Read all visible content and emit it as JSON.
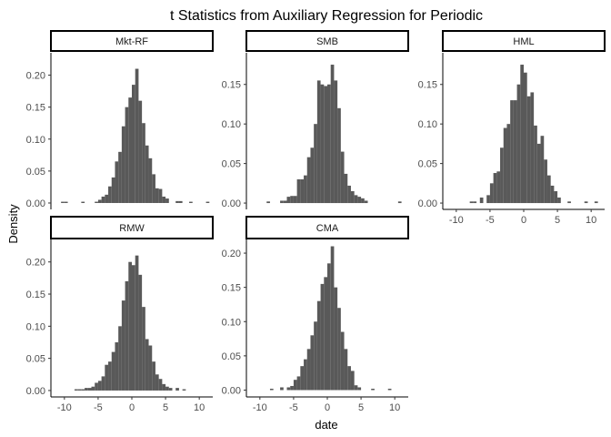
{
  "chart_data": {
    "type": "bar",
    "title": "t Statistics from Auxiliary Regression for Periodic",
    "xlabel": "date",
    "ylabel": "Density",
    "bar_color": "#595959",
    "x_ticks": [
      -10,
      -5,
      0,
      5,
      10
    ],
    "x_tick_labels": [
      "-10",
      "-5",
      "0",
      "5",
      "10"
    ],
    "grid": false,
    "panels": [
      {
        "name": "Mkt-RF",
        "xlim": [
          -12,
          12
        ],
        "ylim": [
          -0.01,
          0.235
        ],
        "y_ticks": [
          0,
          0.05,
          0.1,
          0.15,
          0.2
        ],
        "y_tick_labels": [
          "0.00",
          "0.05",
          "0.10",
          "0.15",
          "0.20"
        ],
        "bins": [
          {
            "x": -10.5,
            "y": 0.002
          },
          {
            "x": -10.0,
            "y": 0.002
          },
          {
            "x": -7.5,
            "y": 0.002
          },
          {
            "x": -5.5,
            "y": 0.002
          },
          {
            "x": -5.0,
            "y": 0.005
          },
          {
            "x": -4.5,
            "y": 0.01
          },
          {
            "x": -4.0,
            "y": 0.013
          },
          {
            "x": -3.5,
            "y": 0.026
          },
          {
            "x": -3.0,
            "y": 0.04
          },
          {
            "x": -2.5,
            "y": 0.065
          },
          {
            "x": -2.0,
            "y": 0.08
          },
          {
            "x": -1.5,
            "y": 0.12
          },
          {
            "x": -1.0,
            "y": 0.15
          },
          {
            "x": -0.5,
            "y": 0.165
          },
          {
            "x": 0.0,
            "y": 0.185
          },
          {
            "x": 0.5,
            "y": 0.21
          },
          {
            "x": 1.0,
            "y": 0.16
          },
          {
            "x": 1.5,
            "y": 0.125
          },
          {
            "x": 2.0,
            "y": 0.09
          },
          {
            "x": 2.5,
            "y": 0.07
          },
          {
            "x": 3.0,
            "y": 0.045
          },
          {
            "x": 3.5,
            "y": 0.023
          },
          {
            "x": 4.0,
            "y": 0.022
          },
          {
            "x": 4.5,
            "y": 0.01
          },
          {
            "x": 5.0,
            "y": 0.007
          },
          {
            "x": 6.5,
            "y": 0.003
          },
          {
            "x": 7.0,
            "y": 0.003
          },
          {
            "x": 8.5,
            "y": 0.002
          },
          {
            "x": 11.0,
            "y": 0.002
          }
        ]
      },
      {
        "name": "SMB",
        "xlim": [
          -12,
          12
        ],
        "ylim": [
          -0.008,
          0.19
        ],
        "y_ticks": [
          0,
          0.05,
          0.1,
          0.15
        ],
        "y_tick_labels": [
          "0.00",
          "0.05",
          "0.10",
          "0.15"
        ],
        "bins": [
          {
            "x": -9.0,
            "y": 0.002
          },
          {
            "x": -7.0,
            "y": 0.003
          },
          {
            "x": -6.5,
            "y": 0.003
          },
          {
            "x": -6.0,
            "y": 0.008
          },
          {
            "x": -5.5,
            "y": 0.009
          },
          {
            "x": -5.0,
            "y": 0.009
          },
          {
            "x": -4.5,
            "y": 0.03
          },
          {
            "x": -4.0,
            "y": 0.03
          },
          {
            "x": -3.5,
            "y": 0.035
          },
          {
            "x": -3.0,
            "y": 0.058
          },
          {
            "x": -2.5,
            "y": 0.07
          },
          {
            "x": -2.0,
            "y": 0.1
          },
          {
            "x": -1.5,
            "y": 0.155
          },
          {
            "x": -1.0,
            "y": 0.15
          },
          {
            "x": -0.5,
            "y": 0.148
          },
          {
            "x": 0.0,
            "y": 0.15
          },
          {
            "x": 0.5,
            "y": 0.175
          },
          {
            "x": 1.0,
            "y": 0.155
          },
          {
            "x": 1.5,
            "y": 0.12
          },
          {
            "x": 2.0,
            "y": 0.065
          },
          {
            "x": 2.5,
            "y": 0.037
          },
          {
            "x": 3.0,
            "y": 0.022
          },
          {
            "x": 3.5,
            "y": 0.015
          },
          {
            "x": 4.0,
            "y": 0.01
          },
          {
            "x": 4.5,
            "y": 0.008
          },
          {
            "x": 5.0,
            "y": 0.006
          },
          {
            "x": 5.5,
            "y": 0.003
          },
          {
            "x": 10.5,
            "y": 0.002
          }
        ]
      },
      {
        "name": "HML",
        "xlim": [
          -12,
          12
        ],
        "ylim": [
          -0.008,
          0.19
        ],
        "y_ticks": [
          0,
          0.05,
          0.1,
          0.15
        ],
        "y_tick_labels": [
          "0.00",
          "0.05",
          "0.10",
          "0.15"
        ],
        "bins": [
          {
            "x": -8.0,
            "y": 0.002
          },
          {
            "x": -7.5,
            "y": 0.002
          },
          {
            "x": -6.5,
            "y": 0.007
          },
          {
            "x": -5.5,
            "y": 0.01
          },
          {
            "x": -5.0,
            "y": 0.025
          },
          {
            "x": -4.5,
            "y": 0.038
          },
          {
            "x": -4.0,
            "y": 0.04
          },
          {
            "x": -3.5,
            "y": 0.07
          },
          {
            "x": -3.0,
            "y": 0.095
          },
          {
            "x": -2.5,
            "y": 0.1
          },
          {
            "x": -2.0,
            "y": 0.13
          },
          {
            "x": -1.5,
            "y": 0.13
          },
          {
            "x": -1.0,
            "y": 0.15
          },
          {
            "x": -0.5,
            "y": 0.175
          },
          {
            "x": 0.0,
            "y": 0.165
          },
          {
            "x": 0.5,
            "y": 0.135
          },
          {
            "x": 1.0,
            "y": 0.14
          },
          {
            "x": 1.5,
            "y": 0.098
          },
          {
            "x": 2.0,
            "y": 0.075
          },
          {
            "x": 2.5,
            "y": 0.085
          },
          {
            "x": 3.0,
            "y": 0.055
          },
          {
            "x": 3.5,
            "y": 0.035
          },
          {
            "x": 4.0,
            "y": 0.022
          },
          {
            "x": 4.5,
            "y": 0.015
          },
          {
            "x": 5.0,
            "y": 0.007
          },
          {
            "x": 6.5,
            "y": 0.002
          },
          {
            "x": 9.0,
            "y": 0.002
          },
          {
            "x": 10.5,
            "y": 0.002
          }
        ]
      },
      {
        "name": "RMW",
        "xlim": [
          -12,
          12
        ],
        "ylim": [
          -0.01,
          0.235
        ],
        "y_ticks": [
          0,
          0.05,
          0.1,
          0.15,
          0.2
        ],
        "y_tick_labels": [
          "0.00",
          "0.05",
          "0.10",
          "0.15",
          "0.20"
        ],
        "bins": [
          {
            "x": -8.5,
            "y": 0.002
          },
          {
            "x": -8.0,
            "y": 0.002
          },
          {
            "x": -7.5,
            "y": 0.002
          },
          {
            "x": -7.0,
            "y": 0.004
          },
          {
            "x": -6.5,
            "y": 0.004
          },
          {
            "x": -6.0,
            "y": 0.006
          },
          {
            "x": -5.5,
            "y": 0.012
          },
          {
            "x": -5.0,
            "y": 0.015
          },
          {
            "x": -4.5,
            "y": 0.022
          },
          {
            "x": -4.0,
            "y": 0.04
          },
          {
            "x": -3.5,
            "y": 0.045
          },
          {
            "x": -3.0,
            "y": 0.06
          },
          {
            "x": -2.5,
            "y": 0.075
          },
          {
            "x": -2.0,
            "y": 0.1
          },
          {
            "x": -1.5,
            "y": 0.14
          },
          {
            "x": -1.0,
            "y": 0.17
          },
          {
            "x": -0.5,
            "y": 0.2
          },
          {
            "x": 0.0,
            "y": 0.195
          },
          {
            "x": 0.5,
            "y": 0.21
          },
          {
            "x": 1.0,
            "y": 0.18
          },
          {
            "x": 1.5,
            "y": 0.13
          },
          {
            "x": 2.0,
            "y": 0.08
          },
          {
            "x": 2.5,
            "y": 0.07
          },
          {
            "x": 3.0,
            "y": 0.045
          },
          {
            "x": 3.5,
            "y": 0.025
          },
          {
            "x": 4.0,
            "y": 0.018
          },
          {
            "x": 4.5,
            "y": 0.01
          },
          {
            "x": 5.0,
            "y": 0.006
          },
          {
            "x": 5.5,
            "y": 0.004
          },
          {
            "x": 6.5,
            "y": 0.004
          },
          {
            "x": 7.5,
            "y": 0.002
          }
        ]
      },
      {
        "name": "CMA",
        "xlim": [
          -12,
          12
        ],
        "ylim": [
          -0.01,
          0.22
        ],
        "y_ticks": [
          0,
          0.05,
          0.1,
          0.15,
          0.2
        ],
        "y_tick_labels": [
          "0.00",
          "0.05",
          "0.10",
          "0.15",
          "0.20"
        ],
        "bins": [
          {
            "x": -8.5,
            "y": 0.002
          },
          {
            "x": -7.0,
            "y": 0.004
          },
          {
            "x": -6.0,
            "y": 0.004
          },
          {
            "x": -5.5,
            "y": 0.006
          },
          {
            "x": -5.0,
            "y": 0.015
          },
          {
            "x": -4.5,
            "y": 0.02
          },
          {
            "x": -4.0,
            "y": 0.035
          },
          {
            "x": -3.5,
            "y": 0.045
          },
          {
            "x": -3.0,
            "y": 0.06
          },
          {
            "x": -2.5,
            "y": 0.08
          },
          {
            "x": -2.0,
            "y": 0.1
          },
          {
            "x": -1.5,
            "y": 0.13
          },
          {
            "x": -1.0,
            "y": 0.155
          },
          {
            "x": -0.5,
            "y": 0.165
          },
          {
            "x": 0.0,
            "y": 0.185
          },
          {
            "x": 0.5,
            "y": 0.21
          },
          {
            "x": 1.0,
            "y": 0.15
          },
          {
            "x": 1.5,
            "y": 0.12
          },
          {
            "x": 2.0,
            "y": 0.085
          },
          {
            "x": 2.5,
            "y": 0.06
          },
          {
            "x": 3.0,
            "y": 0.035
          },
          {
            "x": 3.5,
            "y": 0.028
          },
          {
            "x": 4.0,
            "y": 0.007
          },
          {
            "x": 4.5,
            "y": 0.004
          },
          {
            "x": 6.5,
            "y": 0.002
          },
          {
            "x": 9.0,
            "y": 0.002
          }
        ]
      }
    ]
  }
}
